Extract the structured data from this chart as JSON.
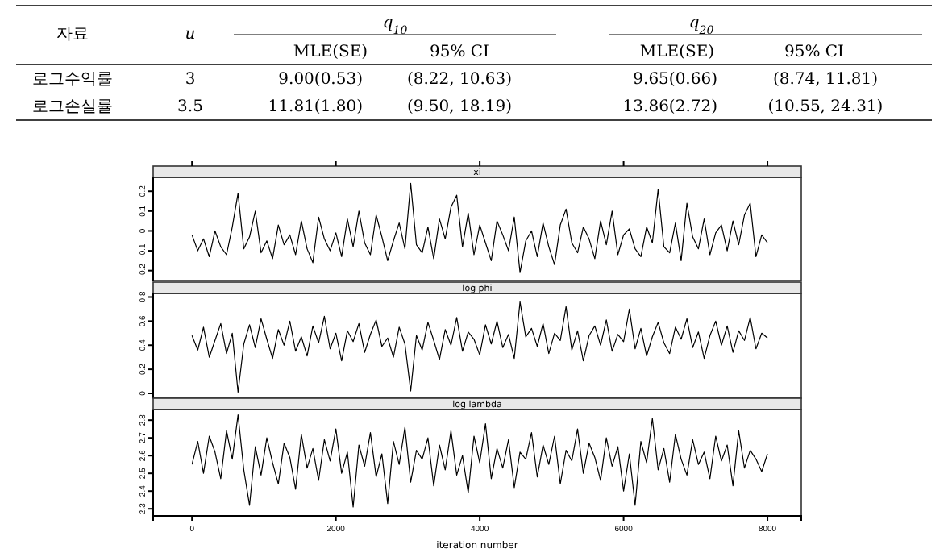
{
  "chart_data": [
    {
      "type": "other",
      "annotations": [
        "자료",
        "u",
        "q$_{10}$",
        "q$_{20}$",
        "MLE(SE)",
        "95% CI",
        "MLE(SE)",
        "95% CI",
        "로그수익률",
        "3",
        "9.00(0.53)",
        "(8.22, 10.63)",
        "9.65(0.66)",
        "(8.74, 11.81)",
        "로그손실률",
        "3.5",
        "11.81(1.80)",
        "(9.50, 18.19)",
        "13.86(2.72)",
        "(10.55, 24.31)"
      ]
    },
    {
      "type": "line",
      "title": "xi",
      "tick_labels": "y",
      "xlim": [
        -540,
        8470
      ],
      "xticks": [
        0,
        2000,
        4000,
        6000,
        8000
      ],
      "ylim": [
        -0.25,
        0.27
      ],
      "yticks": [
        -0.2,
        -0.1,
        0.0,
        0.1,
        0.2
      ],
      "marker": "none",
      "series": [
        {
          "color": "#000000",
          "x": [
            0,
            80,
            160,
            240,
            320,
            400,
            480,
            560,
            640,
            720,
            800,
            880,
            960,
            1040,
            1120,
            1200,
            1280,
            1360,
            1440,
            1520,
            1600,
            1680,
            1760,
            1840,
            1920,
            2000,
            2080,
            2160,
            2240,
            2320,
            2400,
            2480,
            2560,
            2640,
            2720,
            2800,
            2880,
            2960,
            3040,
            3120,
            3200,
            3280,
            3360,
            3440,
            3520,
            3600,
            3680,
            3760,
            3840,
            3920,
            4000,
            4080,
            4160,
            4240,
            4320,
            4400,
            4480,
            4560,
            4640,
            4720,
            4800,
            4880,
            4960,
            5040,
            5120,
            5200,
            5280,
            5360,
            5440,
            5520,
            5600,
            5680,
            5760,
            5840,
            5920,
            6000,
            6080,
            6160,
            6240,
            6320,
            6400,
            6480,
            6560,
            6640,
            6720,
            6800,
            6880,
            6960,
            7040,
            7120,
            7200,
            7280,
            7360,
            7440,
            7520,
            7600,
            7680,
            7760,
            7840,
            7920,
            8000
          ],
          "values": [
            -0.02,
            -0.1,
            -0.04,
            -0.13,
            0.0,
            -0.08,
            -0.12,
            0.02,
            0.19,
            -0.09,
            -0.03,
            0.1,
            -0.11,
            -0.05,
            -0.14,
            0.03,
            -0.07,
            -0.02,
            -0.12,
            0.05,
            -0.09,
            -0.16,
            0.07,
            -0.04,
            -0.1,
            -0.01,
            -0.13,
            0.06,
            -0.08,
            0.1,
            -0.06,
            -0.12,
            0.08,
            -0.03,
            -0.15,
            -0.05,
            0.04,
            -0.09,
            0.24,
            -0.07,
            -0.11,
            0.02,
            -0.14,
            0.06,
            -0.04,
            0.12,
            0.18,
            -0.08,
            0.09,
            -0.12,
            0.03,
            -0.06,
            -0.15,
            0.05,
            -0.02,
            -0.1,
            0.07,
            -0.21,
            -0.05,
            0.0,
            -0.13,
            0.04,
            -0.08,
            -0.17,
            0.03,
            0.11,
            -0.06,
            -0.11,
            0.02,
            -0.04,
            -0.14,
            0.05,
            -0.07,
            0.1,
            -0.12,
            -0.02,
            0.01,
            -0.09,
            -0.13,
            0.02,
            -0.06,
            0.21,
            -0.08,
            -0.11,
            0.04,
            -0.15,
            0.14,
            -0.03,
            -0.09,
            0.06,
            -0.12,
            -0.01,
            0.03,
            -0.1,
            0.05,
            -0.07,
            0.08,
            0.14,
            -0.13,
            -0.02,
            -0.06
          ]
        }
      ]
    },
    {
      "type": "line",
      "title": "log phi",
      "tick_labels": "y",
      "xlim": [
        -540,
        8470
      ],
      "xticks": [
        0,
        2000,
        4000,
        6000,
        8000
      ],
      "ylim": [
        -0.04,
        0.83
      ],
      "yticks": [
        0.0,
        0.2,
        0.4,
        0.6,
        0.8
      ],
      "marker": "none",
      "series": [
        {
          "color": "#000000",
          "x": [
            0,
            80,
            160,
            240,
            320,
            400,
            480,
            560,
            640,
            720,
            800,
            880,
            960,
            1040,
            1120,
            1200,
            1280,
            1360,
            1440,
            1520,
            1600,
            1680,
            1760,
            1840,
            1920,
            2000,
            2080,
            2160,
            2240,
            2320,
            2400,
            2480,
            2560,
            2640,
            2720,
            2800,
            2880,
            2960,
            3040,
            3120,
            3200,
            3280,
            3360,
            3440,
            3520,
            3600,
            3680,
            3760,
            3840,
            3920,
            4000,
            4080,
            4160,
            4240,
            4320,
            4400,
            4480,
            4560,
            4640,
            4720,
            4800,
            4880,
            4960,
            5040,
            5120,
            5200,
            5280,
            5360,
            5440,
            5520,
            5600,
            5680,
            5760,
            5840,
            5920,
            6000,
            6080,
            6160,
            6240,
            6320,
            6400,
            6480,
            6560,
            6640,
            6720,
            6800,
            6880,
            6960,
            7040,
            7120,
            7200,
            7280,
            7360,
            7440,
            7520,
            7600,
            7680,
            7760,
            7840,
            7920,
            8000
          ],
          "values": [
            0.48,
            0.36,
            0.55,
            0.3,
            0.44,
            0.58,
            0.33,
            0.5,
            0.01,
            0.41,
            0.57,
            0.38,
            0.62,
            0.45,
            0.29,
            0.53,
            0.4,
            0.6,
            0.35,
            0.47,
            0.31,
            0.56,
            0.42,
            0.64,
            0.37,
            0.5,
            0.27,
            0.52,
            0.43,
            0.58,
            0.34,
            0.49,
            0.61,
            0.39,
            0.46,
            0.3,
            0.55,
            0.41,
            0.02,
            0.48,
            0.36,
            0.59,
            0.44,
            0.28,
            0.53,
            0.4,
            0.63,
            0.35,
            0.51,
            0.45,
            0.32,
            0.57,
            0.41,
            0.6,
            0.38,
            0.49,
            0.29,
            0.76,
            0.47,
            0.54,
            0.39,
            0.58,
            0.33,
            0.5,
            0.44,
            0.72,
            0.36,
            0.52,
            0.27,
            0.48,
            0.56,
            0.4,
            0.61,
            0.35,
            0.49,
            0.43,
            0.7,
            0.37,
            0.54,
            0.31,
            0.47,
            0.59,
            0.42,
            0.33,
            0.55,
            0.45,
            0.62,
            0.38,
            0.51,
            0.29,
            0.48,
            0.6,
            0.4,
            0.56,
            0.34,
            0.52,
            0.44,
            0.63,
            0.37,
            0.5,
            0.46
          ]
        }
      ]
    },
    {
      "type": "line",
      "title": "log lambda",
      "xlabel": "iteration number",
      "xlim": [
        -540,
        8470
      ],
      "xticks": [
        0,
        2000,
        4000,
        6000,
        8000
      ],
      "ylim": [
        2.26,
        2.86
      ],
      "yticks": [
        2.3,
        2.4,
        2.5,
        2.6,
        2.7,
        2.8
      ],
      "marker": "none",
      "series": [
        {
          "color": "#000000",
          "x": [
            0,
            80,
            160,
            240,
            320,
            400,
            480,
            560,
            640,
            720,
            800,
            880,
            960,
            1040,
            1120,
            1200,
            1280,
            1360,
            1440,
            1520,
            1600,
            1680,
            1760,
            1840,
            1920,
            2000,
            2080,
            2160,
            2240,
            2320,
            2400,
            2480,
            2560,
            2640,
            2720,
            2800,
            2880,
            2960,
            3040,
            3120,
            3200,
            3280,
            3360,
            3440,
            3520,
            3600,
            3680,
            3760,
            3840,
            3920,
            4000,
            4080,
            4160,
            4240,
            4320,
            4400,
            4480,
            4560,
            4640,
            4720,
            4800,
            4880,
            4960,
            5040,
            5120,
            5200,
            5280,
            5360,
            5440,
            5520,
            5600,
            5680,
            5760,
            5840,
            5920,
            6000,
            6080,
            6160,
            6240,
            6320,
            6400,
            6480,
            6560,
            6640,
            6720,
            6800,
            6880,
            6960,
            7040,
            7120,
            7200,
            7280,
            7360,
            7440,
            7520,
            7600,
            7680,
            7760,
            7840,
            7920,
            8000
          ],
          "values": [
            2.55,
            2.68,
            2.5,
            2.71,
            2.62,
            2.47,
            2.74,
            2.58,
            2.83,
            2.52,
            2.32,
            2.65,
            2.49,
            2.7,
            2.56,
            2.44,
            2.67,
            2.59,
            2.41,
            2.72,
            2.53,
            2.64,
            2.46,
            2.69,
            2.57,
            2.75,
            2.5,
            2.62,
            2.31,
            2.66,
            2.54,
            2.73,
            2.48,
            2.61,
            2.33,
            2.68,
            2.55,
            2.76,
            2.45,
            2.63,
            2.58,
            2.7,
            2.43,
            2.66,
            2.52,
            2.74,
            2.49,
            2.6,
            2.39,
            2.71,
            2.56,
            2.78,
            2.47,
            2.64,
            2.53,
            2.69,
            2.42,
            2.62,
            2.58,
            2.73,
            2.48,
            2.66,
            2.55,
            2.71,
            2.44,
            2.63,
            2.57,
            2.75,
            2.5,
            2.67,
            2.59,
            2.46,
            2.7,
            2.54,
            2.65,
            2.4,
            2.61,
            2.32,
            2.68,
            2.56,
            2.81,
            2.52,
            2.64,
            2.45,
            2.72,
            2.58,
            2.49,
            2.69,
            2.55,
            2.62,
            2.47,
            2.71,
            2.57,
            2.66,
            2.43,
            2.74,
            2.53,
            2.63,
            2.58,
            2.51,
            2.61
          ]
        }
      ]
    }
  ]
}
